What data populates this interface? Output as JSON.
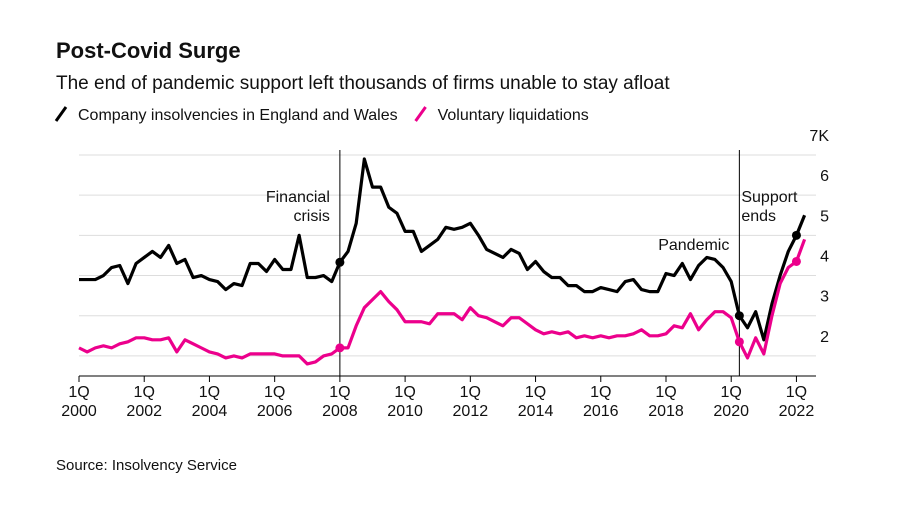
{
  "chart_data": {
    "type": "line",
    "title": "Post-Covid Surge",
    "subtitle": "The end of pandemic support left thousands of firms unable to stay afloat",
    "source": "Source: Insolvency Service",
    "x": [
      2000,
      2000.25,
      2000.5,
      2000.75,
      2001,
      2001.25,
      2001.5,
      2001.75,
      2002,
      2002.25,
      2002.5,
      2002.75,
      2003,
      2003.25,
      2003.5,
      2003.75,
      2004,
      2004.25,
      2004.5,
      2004.75,
      2005,
      2005.25,
      2005.5,
      2005.75,
      2006,
      2006.25,
      2006.5,
      2006.75,
      2007,
      2007.25,
      2007.5,
      2007.75,
      2008,
      2008.25,
      2008.5,
      2008.75,
      2009,
      2009.25,
      2009.5,
      2009.75,
      2010,
      2010.25,
      2010.5,
      2010.75,
      2011,
      2011.25,
      2011.5,
      2011.75,
      2012,
      2012.25,
      2012.5,
      2012.75,
      2013,
      2013.25,
      2013.5,
      2013.75,
      2014,
      2014.25,
      2014.5,
      2014.75,
      2015,
      2015.25,
      2015.5,
      2015.75,
      2016,
      2016.25,
      2016.5,
      2016.75,
      2017,
      2017.25,
      2017.5,
      2017.75,
      2018,
      2018.25,
      2018.5,
      2018.75,
      2019,
      2019.25,
      2019.5,
      2019.75,
      2020,
      2020.25,
      2020.5,
      2020.75,
      2021,
      2021.25,
      2021.5,
      2021.75,
      2022,
      2022.25
    ],
    "series": [
      {
        "name": "Company insolvencies in England and Wales",
        "color": "#000000",
        "values": [
          3.9,
          3.9,
          3.9,
          4.0,
          4.2,
          4.25,
          3.8,
          4.3,
          4.45,
          4.6,
          4.45,
          4.75,
          4.3,
          4.4,
          3.95,
          4.0,
          3.9,
          3.85,
          3.65,
          3.8,
          3.75,
          4.3,
          4.3,
          4.1,
          4.4,
          4.15,
          4.15,
          5.0,
          3.95,
          3.95,
          4.0,
          3.85,
          4.33,
          4.6,
          5.3,
          6.9,
          6.2,
          6.2,
          5.7,
          5.55,
          5.1,
          5.1,
          4.6,
          4.75,
          4.9,
          5.2,
          5.15,
          5.2,
          5.3,
          5.0,
          4.65,
          4.55,
          4.45,
          4.65,
          4.55,
          4.15,
          4.35,
          4.1,
          3.95,
          3.95,
          3.75,
          3.75,
          3.6,
          3.6,
          3.7,
          3.65,
          3.6,
          3.85,
          3.9,
          3.65,
          3.6,
          3.6,
          4.05,
          4.0,
          4.3,
          3.9,
          4.25,
          4.45,
          4.4,
          4.2,
          3.85,
          3.0,
          2.7,
          3.1,
          2.4,
          3.3,
          4.0,
          4.6,
          5.0,
          5.5
        ]
      },
      {
        "name": "Voluntary liquidations",
        "color": "#ec008c",
        "values": [
          2.2,
          2.1,
          2.2,
          2.25,
          2.2,
          2.3,
          2.35,
          2.45,
          2.45,
          2.4,
          2.4,
          2.45,
          2.1,
          2.4,
          2.3,
          2.2,
          2.1,
          2.05,
          1.95,
          2.0,
          1.95,
          2.05,
          2.05,
          2.05,
          2.05,
          2.0,
          2.0,
          2.0,
          1.8,
          1.85,
          2.0,
          2.05,
          2.2,
          2.2,
          2.75,
          3.2,
          3.4,
          3.6,
          3.35,
          3.15,
          2.85,
          2.85,
          2.85,
          2.8,
          3.05,
          3.05,
          3.05,
          2.9,
          3.2,
          3.0,
          2.95,
          2.85,
          2.75,
          2.95,
          2.95,
          2.8,
          2.65,
          2.55,
          2.6,
          2.55,
          2.6,
          2.45,
          2.5,
          2.45,
          2.5,
          2.45,
          2.5,
          2.5,
          2.55,
          2.65,
          2.5,
          2.5,
          2.55,
          2.75,
          2.7,
          3.05,
          2.65,
          2.9,
          3.1,
          3.1,
          2.95,
          2.35,
          1.95,
          2.45,
          2.05,
          3.0,
          3.8,
          4.2,
          4.35,
          4.9
        ]
      }
    ],
    "marker_x": [
      2008,
      2020.25,
      2022
    ],
    "annotations": [
      {
        "x": 2008,
        "lines": [
          "Financial",
          "crisis"
        ],
        "line": true
      },
      {
        "x": 2020.25,
        "lines": [
          "Pandemic"
        ],
        "line": false
      },
      {
        "x": 2020.25,
        "lines": [
          "Support",
          "ends"
        ],
        "line": true
      }
    ],
    "xlim": [
      2000,
      2022.6
    ],
    "xticks": [
      {
        "value": 2000,
        "label": "1Q\n2000"
      },
      {
        "value": 2002,
        "label": "1Q\n2002"
      },
      {
        "value": 2004,
        "label": "1Q\n2004"
      },
      {
        "value": 2006,
        "label": "1Q\n2006"
      },
      {
        "value": 2008,
        "label": "1Q\n2008"
      },
      {
        "value": 2010,
        "label": "1Q\n2010"
      },
      {
        "value": 2012,
        "label": "1Q\n2012"
      },
      {
        "value": 2014,
        "label": "1Q\n2014"
      },
      {
        "value": 2016,
        "label": "1Q\n2016"
      },
      {
        "value": 2018,
        "label": "1Q\n2018"
      },
      {
        "value": 2020,
        "label": "1Q\n2020"
      },
      {
        "value": 2022,
        "label": "1Q\n2022"
      }
    ],
    "ylim": [
      1.5,
      7
    ],
    "yticks": [
      {
        "value": 7,
        "label": "7K"
      },
      6,
      5,
      4,
      3,
      2
    ],
    "grid": true
  }
}
